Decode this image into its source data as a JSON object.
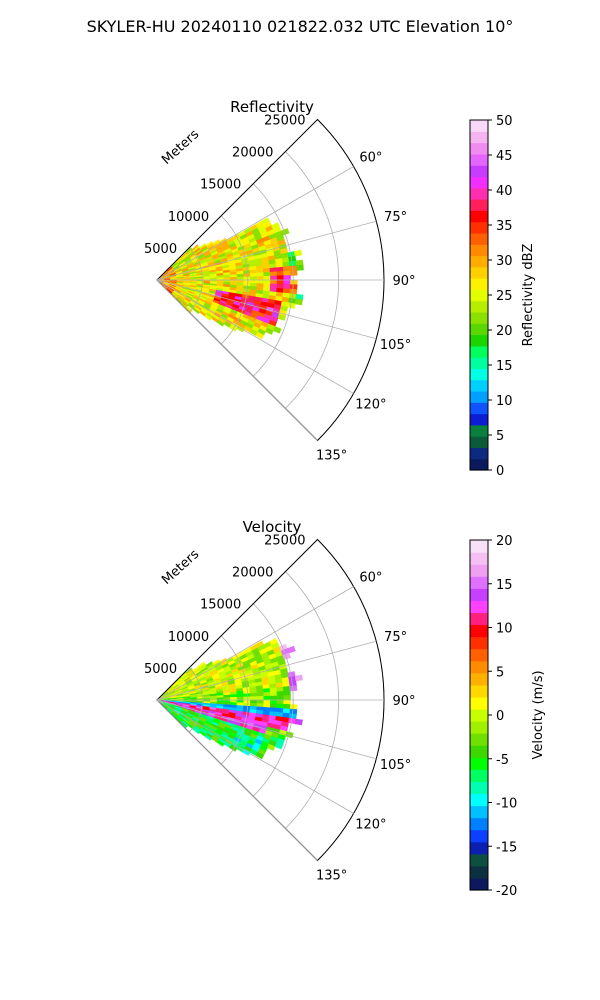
{
  "figure": {
    "suptitle": "SKYLER-HU  20240110  021822.032 UTC Elevation 10°"
  },
  "chart_data": [
    {
      "type": "heatmap",
      "projection": "polar-sector",
      "title": "Reflectivity",
      "radial_label": "Meters",
      "radial_ticks": [
        5000,
        10000,
        15000,
        20000,
        25000
      ],
      "radial_range": [
        0,
        25000
      ],
      "azimuth_ticks": [
        "60°",
        "75°",
        "90°",
        "105°",
        "120°",
        "135°"
      ],
      "azimuth_tick_values": [
        60,
        75,
        90,
        105,
        120,
        135
      ],
      "azimuth_range": [
        45,
        135
      ],
      "grid": true,
      "colorbar": {
        "label": "Reflectivity dBZ",
        "ticks": [
          0,
          5,
          10,
          15,
          20,
          25,
          30,
          35,
          40,
          45,
          50
        ],
        "range": [
          0,
          50
        ],
        "colors": [
          "#0a1a5c",
          "#0e2a80",
          "#0c5a3a",
          "#0a8040",
          "#0d1dd1",
          "#0f53ff",
          "#00a0ff",
          "#00cfff",
          "#00ffe3",
          "#00ffa0",
          "#00ff5a",
          "#1cd500",
          "#58d800",
          "#8be000",
          "#b7ee00",
          "#e1ff00",
          "#fff200",
          "#ffd000",
          "#ffae00",
          "#ff8a00",
          "#ff5f00",
          "#ff3000",
          "#ff0000",
          "#ff1f5a",
          "#ff2db0",
          "#f02fff",
          "#c83cff",
          "#e466ff",
          "#f08cf0",
          "#f4b4f0",
          "#f8d8f8"
        ]
      },
      "field_description": "Echo mostly 20-35 dBZ with embedded 35-45 dBZ cores; weaker 15-22 dBZ at fringes."
    },
    {
      "type": "heatmap",
      "projection": "polar-sector",
      "title": "Velocity",
      "radial_label": "Meters",
      "radial_ticks": [
        5000,
        10000,
        15000,
        20000,
        25000
      ],
      "radial_range": [
        0,
        25000
      ],
      "azimuth_ticks": [
        "60°",
        "75°",
        "90°",
        "105°",
        "120°",
        "135°"
      ],
      "azimuth_tick_values": [
        60,
        75,
        90,
        105,
        120,
        135
      ],
      "azimuth_range": [
        45,
        135
      ],
      "grid": true,
      "colorbar": {
        "label": "Velocity (m/s)",
        "ticks": [
          -20,
          -15,
          -10,
          -5,
          0,
          5,
          10,
          15,
          20
        ],
        "range": [
          -20,
          20
        ],
        "colors": [
          "#0a1a5c",
          "#0c3040",
          "#0d5040",
          "#0c1fb0",
          "#0d3fff",
          "#0080ff",
          "#00c0ff",
          "#00ffff",
          "#00ffb0",
          "#00ff60",
          "#00ff00",
          "#3cd800",
          "#70e000",
          "#a0f000",
          "#c8ff00",
          "#ffff00",
          "#ffd800",
          "#ffb000",
          "#ff8c00",
          "#ff6000",
          "#ff3000",
          "#ff0000",
          "#ff2080",
          "#ff40ff",
          "#c840ff",
          "#e070ff",
          "#f0a0f0",
          "#f4c0f4",
          "#f8e0f8"
        ]
      },
      "field_description": "Mostly -5 to +5 m/s; a band of -10 to -13 m/s near 95-100° and +8 to +15 m/s bands near 100-110°."
    }
  ]
}
